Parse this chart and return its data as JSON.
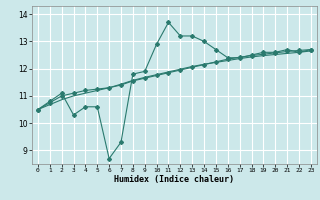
{
  "xlabel": "Humidex (Indice chaleur)",
  "ylabel": "",
  "x_ticks": [
    0,
    1,
    2,
    3,
    4,
    5,
    6,
    7,
    8,
    9,
    10,
    11,
    12,
    13,
    14,
    15,
    16,
    17,
    18,
    19,
    20,
    21,
    22,
    23
  ],
  "ylim": [
    8.5,
    14.3
  ],
  "xlim": [
    -0.5,
    23.5
  ],
  "yticks": [
    9,
    10,
    11,
    12,
    13,
    14
  ],
  "line1_x": [
    0,
    1,
    2,
    3,
    4,
    5,
    6,
    7,
    8,
    9,
    10,
    11,
    12,
    13,
    14,
    15,
    16,
    17,
    18,
    19,
    20,
    21,
    22,
    23
  ],
  "line1_y": [
    10.5,
    10.8,
    11.1,
    10.3,
    10.6,
    10.6,
    8.7,
    9.3,
    11.8,
    11.9,
    12.9,
    13.7,
    13.2,
    13.2,
    13.0,
    12.7,
    12.4,
    12.4,
    12.5,
    12.6,
    12.6,
    12.7,
    12.6,
    12.7
  ],
  "line2_x": [
    0,
    1,
    2,
    3,
    4,
    5,
    6,
    7,
    8,
    9,
    10,
    11,
    12,
    13,
    14,
    15,
    16,
    17,
    18,
    19,
    20,
    21,
    22,
    23
  ],
  "line2_y": [
    10.5,
    10.75,
    11.0,
    11.1,
    11.2,
    11.25,
    11.3,
    11.4,
    11.55,
    11.65,
    11.75,
    11.85,
    11.95,
    12.05,
    12.15,
    12.25,
    12.35,
    12.42,
    12.48,
    12.53,
    12.58,
    12.63,
    12.67,
    12.7
  ],
  "line3_x": [
    0,
    1,
    2,
    3,
    4,
    5,
    6,
    7,
    8,
    9,
    10,
    11,
    12,
    13,
    14,
    15,
    16,
    17,
    18,
    19,
    20,
    21,
    22,
    23
  ],
  "line3_y": [
    10.5,
    10.68,
    10.86,
    11.0,
    11.1,
    11.2,
    11.3,
    11.43,
    11.57,
    11.68,
    11.78,
    11.88,
    11.98,
    12.08,
    12.16,
    12.23,
    12.3,
    12.37,
    12.43,
    12.48,
    12.52,
    12.56,
    12.6,
    12.65
  ],
  "line_color": "#2a7a6e",
  "bg_color": "#cce8ea",
  "grid_color": "#ffffff",
  "marker": "D",
  "markersize": 2.0,
  "linewidth": 0.8
}
